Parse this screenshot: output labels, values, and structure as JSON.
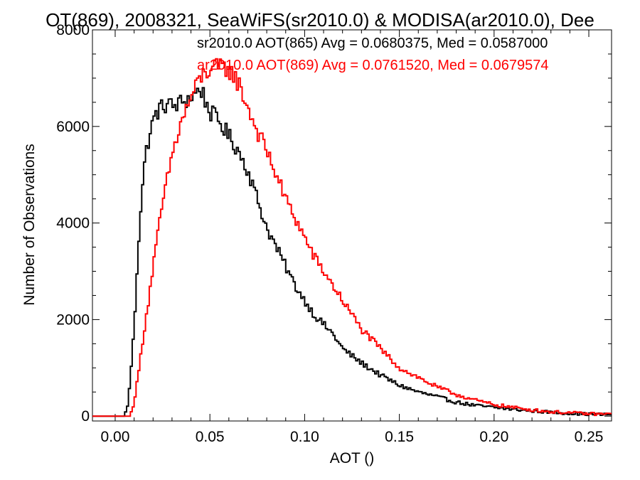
{
  "chart_data": {
    "type": "line",
    "title": "OT(869), 2008321, SeaWiFS(sr2010.0) & MODISA(ar2010.0), Dee",
    "xlabel": "AOT ()",
    "ylabel": "Number of Observations",
    "xlim": [
      -0.012,
      0.262
    ],
    "ylim": [
      -100,
      8000
    ],
    "xticks": [
      0.0,
      0.05,
      0.1,
      0.15,
      0.2,
      0.25
    ],
    "xtick_labels": [
      "0.00",
      "0.05",
      "0.10",
      "0.15",
      "0.20",
      "0.25"
    ],
    "yticks": [
      0,
      2000,
      4000,
      6000,
      8000
    ],
    "ytick_labels": [
      "0",
      "2000",
      "4000",
      "6000",
      "8000"
    ],
    "grid": false,
    "step": 0.001,
    "annotations": [
      {
        "text": "sr2010.0 AOT(865) Avg = 0.0680375, Med = 0.0587000",
        "color": "#000000"
      },
      {
        "text": "ar2010.0 AOT(869) Avg = 0.0761520, Med = 0.0679574",
        "color": "#ff0000"
      }
    ],
    "series": [
      {
        "color": "#000000",
        "x": [
          -0.012,
          0.005,
          0.007,
          0.008,
          0.01,
          0.012,
          0.014,
          0.016,
          0.018,
          0.02,
          0.022,
          0.025,
          0.028,
          0.03,
          0.035,
          0.04,
          0.043,
          0.045,
          0.047,
          0.05,
          0.055,
          0.06,
          0.065,
          0.07,
          0.075,
          0.08,
          0.085,
          0.09,
          0.095,
          0.1,
          0.105,
          0.11,
          0.115,
          0.12,
          0.125,
          0.13,
          0.14,
          0.15,
          0.16,
          0.17,
          0.18,
          0.19,
          0.2,
          0.21,
          0.22,
          0.23,
          0.24,
          0.25,
          0.262
        ],
        "y": [
          0,
          0,
          300,
          800,
          1800,
          3400,
          4600,
          5400,
          5800,
          6100,
          6300,
          6400,
          6500,
          6400,
          6500,
          6600,
          6700,
          6800,
          6600,
          6300,
          6100,
          5800,
          5500,
          5100,
          4500,
          3900,
          3500,
          3100,
          2700,
          2400,
          2100,
          1900,
          1700,
          1400,
          1250,
          1100,
          850,
          640,
          500,
          400,
          290,
          220,
          180,
          140,
          110,
          80,
          60,
          40,
          30
        ]
      },
      {
        "color": "#ff0000",
        "x": [
          -0.012,
          0.008,
          0.01,
          0.012,
          0.015,
          0.018,
          0.02,
          0.025,
          0.03,
          0.035,
          0.04,
          0.045,
          0.05,
          0.055,
          0.06,
          0.065,
          0.07,
          0.075,
          0.08,
          0.085,
          0.09,
          0.095,
          0.1,
          0.105,
          0.11,
          0.115,
          0.12,
          0.125,
          0.13,
          0.14,
          0.15,
          0.16,
          0.17,
          0.18,
          0.19,
          0.2,
          0.21,
          0.22,
          0.23,
          0.24,
          0.25,
          0.262
        ],
        "y": [
          0,
          0,
          300,
          800,
          1700,
          2500,
          3100,
          4400,
          5400,
          6100,
          6600,
          7000,
          7200,
          7200,
          7200,
          6900,
          6400,
          5900,
          5500,
          5000,
          4500,
          4100,
          3700,
          3300,
          3000,
          2700,
          2400,
          2100,
          1800,
          1400,
          1000,
          800,
          600,
          450,
          330,
          240,
          180,
          130,
          90,
          70,
          50,
          40
        ]
      }
    ]
  }
}
